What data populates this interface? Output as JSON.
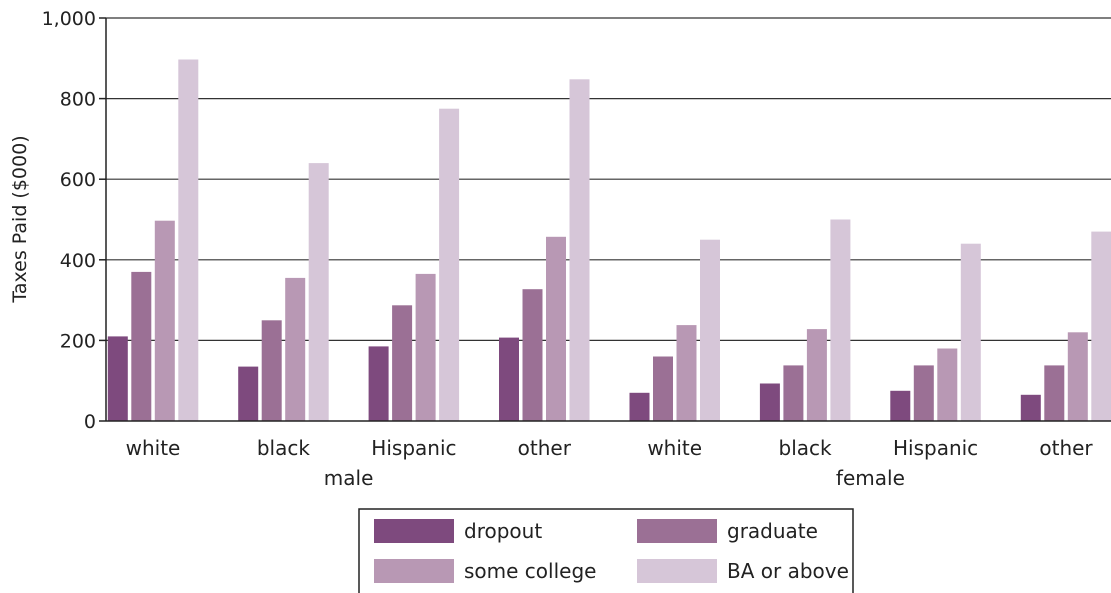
{
  "chart_data": {
    "type": "bar",
    "title": "",
    "xlabel": "",
    "ylabel": "Taxes Paid ($000)",
    "ylim": [
      0,
      1000
    ],
    "yticks": [
      0,
      200,
      400,
      600,
      800,
      1000
    ],
    "ytick_labels": [
      "0",
      "200",
      "400",
      "600",
      "800",
      "1,000"
    ],
    "grid": "horizontal",
    "groups": [
      {
        "label": "male",
        "categories": [
          "white",
          "black",
          "Hispanic",
          "other"
        ]
      },
      {
        "label": "female",
        "categories": [
          "white",
          "black",
          "Hispanic",
          "other"
        ]
      }
    ],
    "categories": [
      "white",
      "black",
      "Hispanic",
      "other",
      "white",
      "black",
      "Hispanic",
      "other"
    ],
    "series": [
      {
        "name": "dropout",
        "color": "#7e4a7e",
        "values": [
          210,
          135,
          185,
          207,
          70,
          93,
          75,
          65
        ]
      },
      {
        "name": "graduate",
        "color": "#9b7095",
        "values": [
          370,
          250,
          287,
          327,
          160,
          138,
          138,
          138
        ]
      },
      {
        "name": "some college",
        "color": "#b898b4",
        "values": [
          497,
          355,
          365,
          457,
          238,
          228,
          180,
          220
        ]
      },
      {
        "name": "BA or above",
        "color": "#d6c6d8",
        "values": [
          897,
          640,
          775,
          848,
          450,
          500,
          440,
          470
        ]
      }
    ],
    "legend": {
      "position": "bottom-center",
      "items": [
        "dropout",
        "graduate",
        "some college",
        "BA or above"
      ]
    }
  }
}
